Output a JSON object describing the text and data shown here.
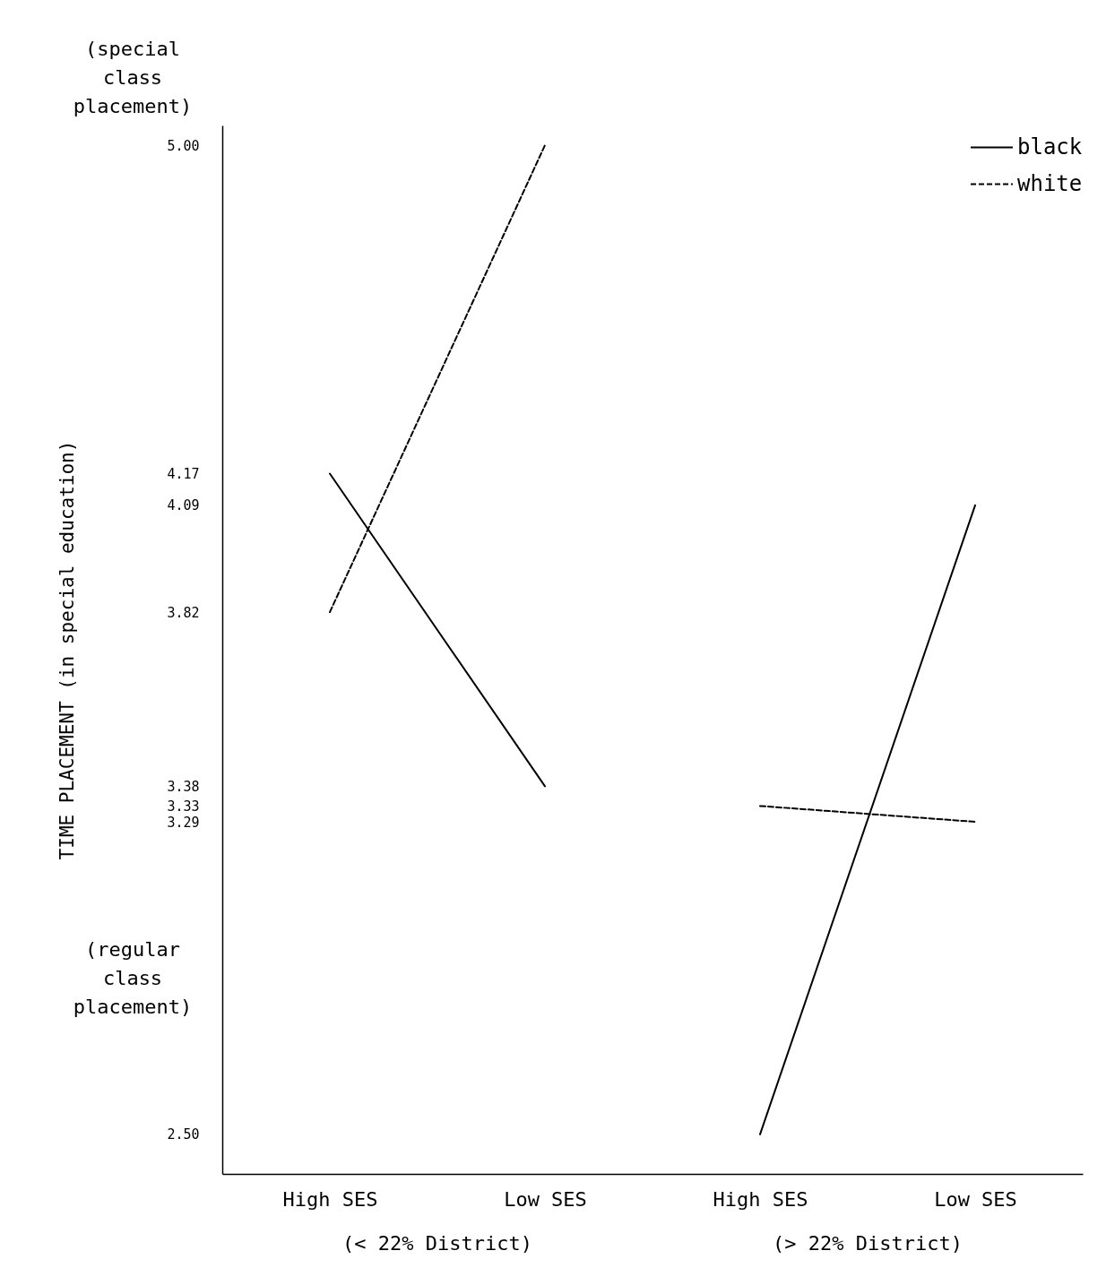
{
  "chart_data": {
    "type": "line",
    "ylabel": "TIME PLACEMENT (in special education)",
    "categories": [
      "High SES",
      "Low SES",
      "High SES",
      "Low SES"
    ],
    "series": [
      {
        "name": "black",
        "color": "#000000",
        "line_style": "solid",
        "values": [
          4.17,
          3.38,
          null,
          null
        ]
      },
      {
        "color": "#000000",
        "line_style": "solid",
        "values": [
          null,
          null,
          2.5,
          4.09
        ]
      },
      {
        "name": "white",
        "color": "#000000",
        "line_style": "dashed",
        "values": [
          3.82,
          5.0,
          null,
          null
        ]
      },
      {
        "color": "#000000",
        "line_style": "dashed",
        "values": [
          null,
          null,
          3.33,
          3.29
        ]
      }
    ],
    "ylim": [
      2.4,
      5.05
    ],
    "yticks": [
      {
        "value": 5.0,
        "label": "5.00"
      },
      4.17,
      4.09,
      3.82,
      3.38,
      3.33,
      3.29,
      {
        "value": 2.5,
        "label": "2.50"
      }
    ],
    "annotations": [
      "(special class placement)",
      "(regular class placement)",
      "(< 22% District)",
      "(> 22% District)"
    ],
    "legend": "top right",
    "grid": false,
    "marker": "none"
  }
}
